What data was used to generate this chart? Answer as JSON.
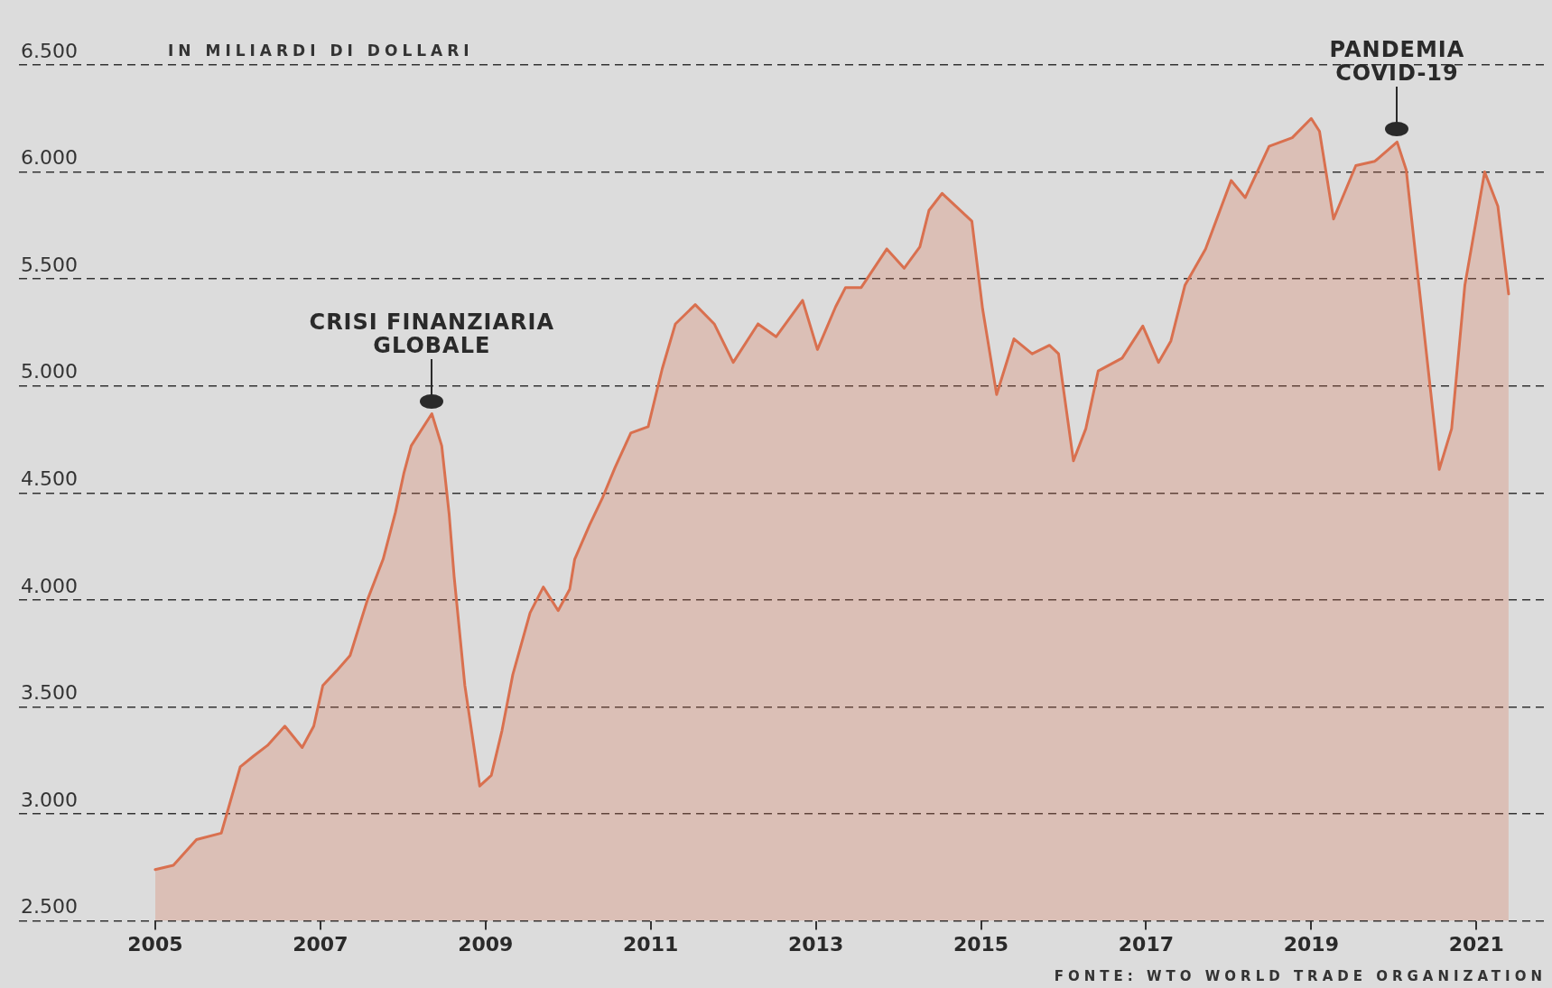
{
  "chart_data": {
    "type": "area",
    "ylabel": "IN MILIARDI DI DOLLARI",
    "annotations": [
      {
        "text": "CRISI FINANZIARIA GLOBALE",
        "x": 2008.35,
        "y": 4870
      },
      {
        "text": "PANDEMIA COVID-19",
        "x": 2020.04,
        "y": 6140
      },
      "FONTE: WTO WORLD TRADE ORGANIZATION"
    ],
    "x": [
      2005.0,
      2005.22,
      2005.5,
      2005.8,
      2006.03,
      2006.19,
      2006.36,
      2006.57,
      2006.78,
      2006.92,
      2007.03,
      2007.2,
      2007.36,
      2007.57,
      2007.76,
      2007.91,
      2008.01,
      2008.1,
      2008.35,
      2008.47,
      2008.56,
      2008.62,
      2008.75,
      2008.93,
      2009.07,
      2009.2,
      2009.33,
      2009.54,
      2009.7,
      2009.88,
      2010.02,
      2010.08,
      2010.26,
      2010.42,
      2010.57,
      2010.76,
      2010.97,
      2011.14,
      2011.3,
      2011.54,
      2011.77,
      2012.0,
      2012.3,
      2012.52,
      2012.84,
      2013.02,
      2013.24,
      2013.36,
      2013.55,
      2013.86,
      2014.07,
      2014.26,
      2014.37,
      2014.53,
      2014.89,
      2015.02,
      2015.19,
      2015.4,
      2015.62,
      2015.83,
      2015.94,
      2016.12,
      2016.27,
      2016.42,
      2016.71,
      2016.96,
      2017.15,
      2017.3,
      2017.47,
      2017.72,
      2018.03,
      2018.2,
      2018.49,
      2018.77,
      2019.0,
      2019.1,
      2019.27,
      2019.54,
      2019.77,
      2020.04,
      2020.15,
      2020.55,
      2020.7,
      2020.86,
      2021.1,
      2021.26,
      2021.39
    ],
    "values": [
      2740,
      2760,
      2880,
      2910,
      3220,
      3270,
      3320,
      3410,
      3310,
      3410,
      3600,
      3670,
      3740,
      4000,
      4190,
      4410,
      4590,
      4720,
      4870,
      4720,
      4400,
      4110,
      3600,
      3130,
      3180,
      3390,
      3650,
      3940,
      4060,
      3950,
      4050,
      4190,
      4350,
      4480,
      4620,
      4780,
      4810,
      5080,
      5290,
      5380,
      5290,
      5110,
      5290,
      5230,
      5400,
      5170,
      5370,
      5460,
      5460,
      5640,
      5550,
      5650,
      5820,
      5900,
      5770,
      5360,
      4960,
      5220,
      5150,
      5190,
      5150,
      4650,
      4800,
      5070,
      5130,
      5280,
      5110,
      5210,
      5470,
      5640,
      5960,
      5880,
      6120,
      6160,
      6250,
      6190,
      5780,
      6030,
      6050,
      6140,
      6010,
      4610,
      4800,
      5470,
      6000,
      5840,
      5430
    ],
    "color": "#d9704f",
    "xlim": [
      2003.35,
      2021.85
    ],
    "xticks": [
      2005,
      2007,
      2009,
      2011,
      2013,
      2015,
      2017,
      2019,
      2021
    ],
    "ylim": [
      2500,
      6500
    ],
    "yticks": [
      {
        "value": 2500,
        "label": "2.500"
      },
      {
        "value": 3000,
        "label": "3.000"
      },
      {
        "value": 3500,
        "label": "3.500"
      },
      {
        "value": 4000,
        "label": "4.000"
      },
      {
        "value": 4500,
        "label": "4.500"
      },
      {
        "value": 5000,
        "label": "5.000"
      },
      {
        "value": 5500,
        "label": "5.500"
      },
      {
        "value": 6000,
        "label": "6.000"
      },
      {
        "value": 6500,
        "label": "6.500"
      }
    ],
    "grid": "y"
  }
}
